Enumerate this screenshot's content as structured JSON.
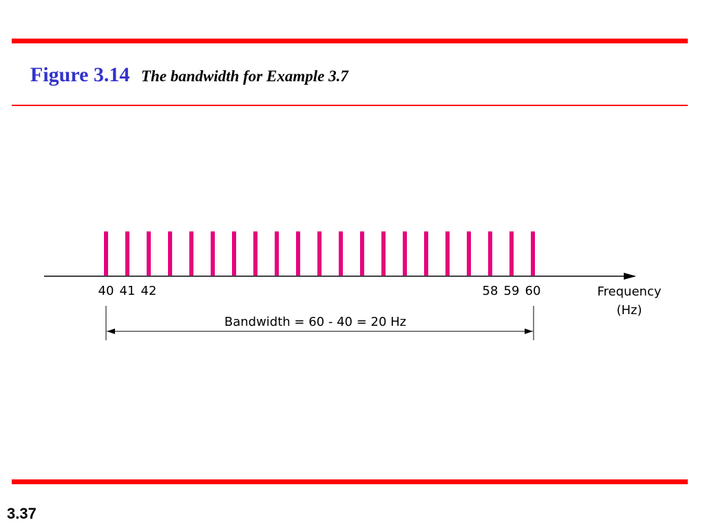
{
  "figure": {
    "number": "Figure 3.14",
    "caption": "The bandwidth for Example 3.7"
  },
  "slide_number": "3.37",
  "colors": {
    "rule": "#ff0000",
    "figure_number": "#3333cc",
    "spectrum_line": "#e6007e"
  },
  "diagram": {
    "component_frequencies": [
      40,
      41,
      42,
      43,
      44,
      45,
      46,
      47,
      48,
      49,
      50,
      51,
      52,
      53,
      54,
      55,
      56,
      57,
      58,
      59,
      60
    ],
    "tick_labels": [
      {
        "label": "40",
        "value": 40
      },
      {
        "label": "41",
        "value": 41
      },
      {
        "label": "42",
        "value": 42
      },
      {
        "label": "58",
        "value": 58
      },
      {
        "label": "59",
        "value": 59
      },
      {
        "label": "60",
        "value": 60
      }
    ],
    "axis_label_line1": "Frequency",
    "axis_label_line2": "(Hz)",
    "bandwidth_label": "Bandwidth = 60 - 40 = 20 Hz"
  }
}
